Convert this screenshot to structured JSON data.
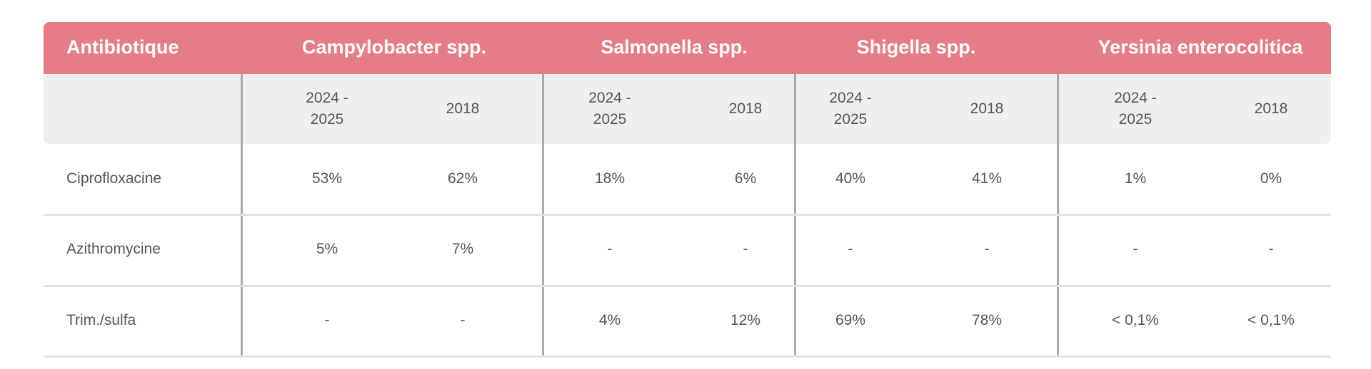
{
  "table": {
    "header": [
      "Antibiotique",
      "Campylobacter spp.",
      "Salmonella spp.",
      "Shigella spp.",
      "Yersinia enterocolitica"
    ],
    "subheader": [
      "2024 - 2025",
      "2018",
      "2024 - 2025",
      "2018",
      "2024 - 2025",
      "2018",
      "2024 - 2025",
      "2018"
    ],
    "rows": [
      [
        "Ciprofloxacine",
        "53%",
        "62%",
        "18%",
        "6%",
        "40%",
        "41%",
        "1%",
        "0%"
      ],
      [
        "Azithromycine",
        "5%",
        "7%",
        "-",
        "-",
        "-",
        "-",
        "-",
        "-"
      ],
      [
        "Trim./sulfa",
        "-",
        "-",
        "4%",
        "12%",
        "69%",
        "78%",
        "< 0,1%",
        "< 0,1%"
      ]
    ]
  }
}
